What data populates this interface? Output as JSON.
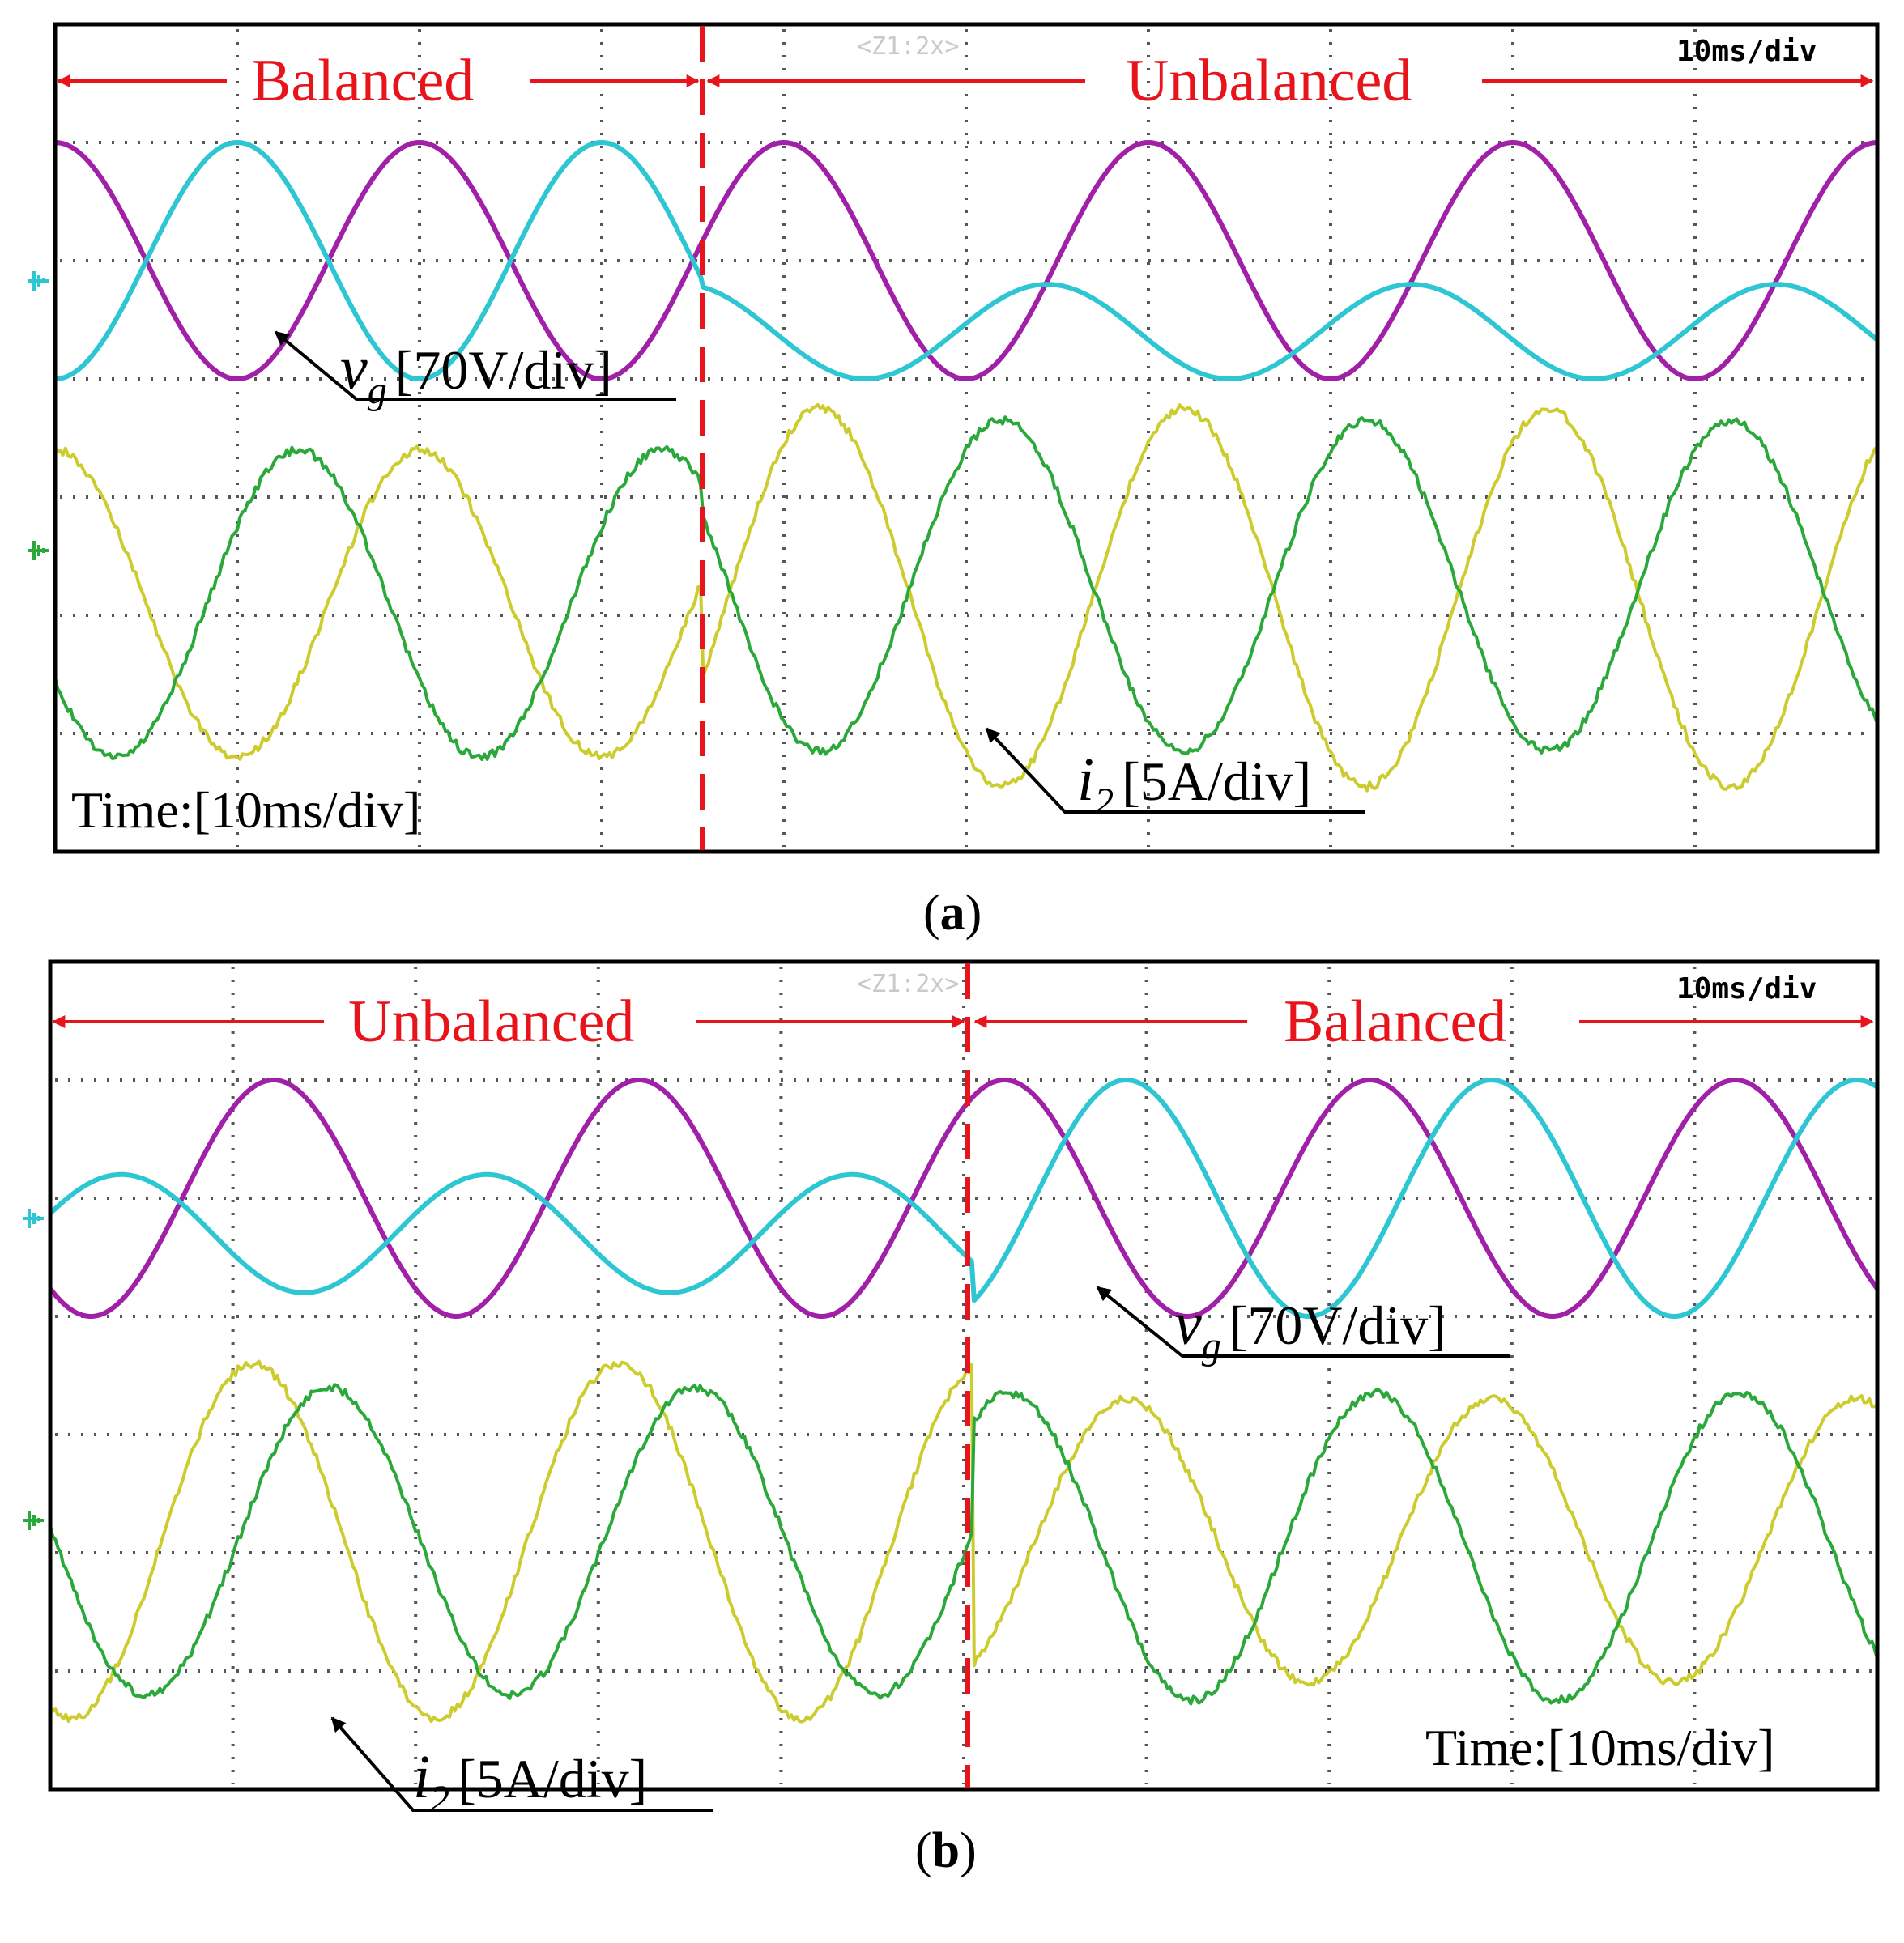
{
  "chart_data": [
    {
      "type": "line",
      "panel": "a",
      "caption": "a",
      "scope_timebase": "10ms/div",
      "zoom_label": "<Z1:2x>",
      "time_label": "Time:[10ms/div]",
      "regions": [
        {
          "label": "Balanced",
          "t_start": 0,
          "t_end": 3.55
        },
        {
          "label": "Unbalanced",
          "t_start": 3.55,
          "t_end": 10
        }
      ],
      "transition_div": 3.55,
      "annotations": [
        {
          "symbol": "v",
          "subscript": "g",
          "scale": "[70V/div]"
        },
        {
          "symbol": "i",
          "subscript": "2",
          "scale": "[5A/div]"
        }
      ],
      "axes": {
        "x_divisions": 10,
        "y_divisions": 7,
        "x_unit": "ms/div",
        "x_scale": 10
      },
      "series": [
        {
          "name": "vg phase 1",
          "color": "#a020a8",
          "freq_hz": 50,
          "segments": [
            {
              "offset_div": 2,
              "amp_div": 1,
              "phase_deg": 90
            },
            {
              "offset_div": 2,
              "amp_div": 1,
              "phase_deg": 90
            }
          ]
        },
        {
          "name": "vg phase 2",
          "color": "#2ec6d2",
          "freq_hz": 50,
          "segments": [
            {
              "offset_div": 2,
              "amp_div": 1,
              "phase_deg": -90
            },
            {
              "offset_div": 2.6,
              "amp_div": 0.4,
              "phase_deg": 190
            }
          ]
        },
        {
          "name": "i2 phase 1",
          "color": "#cccc2e",
          "freq_hz": 50,
          "segments": [
            {
              "offset_div": 4.9,
              "amp_div": 1.3,
              "phase_deg": 90
            },
            {
              "offset_div": 4.85,
              "amp_div": 1.6,
              "phase_deg": 55
            }
          ]
        },
        {
          "name": "i2 phase 2",
          "color": "#2aa83a",
          "freq_hz": 50,
          "segments": [
            {
              "offset_div": 4.9,
              "amp_div": 1.3,
              "phase_deg": 210
            },
            {
              "offset_div": 4.75,
              "amp_div": 1.4,
              "phase_deg": 235
            }
          ]
        }
      ]
    },
    {
      "type": "line",
      "panel": "b",
      "caption": "b",
      "scope_timebase": "10ms/div",
      "zoom_label": "<Z1:2x>",
      "time_label": "Time:[10ms/div]",
      "regions": [
        {
          "label": "Unbalanced",
          "t_start": 0,
          "t_end": 5.05
        },
        {
          "label": "Balanced",
          "t_start": 5.05,
          "t_end": 10
        }
      ],
      "transition_div": 5.05,
      "annotations": [
        {
          "symbol": "v",
          "subscript": "g",
          "scale": "[70V/div]"
        },
        {
          "symbol": "i",
          "subscript": "2",
          "scale": "[5A/div]"
        }
      ],
      "axes": {
        "x_divisions": 10,
        "y_divisions": 7,
        "x_unit": "ms/div",
        "x_scale": 10
      },
      "series": [
        {
          "name": "vg phase 1",
          "color": "#a020a8",
          "freq_hz": 50,
          "segments": [
            {
              "offset_div": 2,
              "amp_div": 1,
              "phase_deg": 230
            },
            {
              "offset_div": 2,
              "amp_div": 1,
              "phase_deg": 230
            }
          ]
        },
        {
          "name": "vg phase 2",
          "color": "#2ec6d2",
          "freq_hz": 50,
          "segments": [
            {
              "offset_div": 2.3,
              "amp_div": 0.5,
              "phase_deg": 20
            },
            {
              "offset_div": 2,
              "amp_div": 1,
              "phase_deg": 110
            }
          ]
        },
        {
          "name": "i2 phase 1",
          "color": "#cccc2e",
          "freq_hz": 50,
          "segments": [
            {
              "offset_div": 4.9,
              "amp_div": 1.5,
              "phase_deg": 250
            },
            {
              "offset_div": 4.9,
              "amp_div": 1.2,
              "phase_deg": 110
            }
          ]
        },
        {
          "name": "i2 phase 2",
          "color": "#2aa83a",
          "freq_hz": 50,
          "segments": [
            {
              "offset_div": 4.9,
              "amp_div": 1.3,
              "phase_deg": 175
            },
            {
              "offset_div": 4.95,
              "amp_div": 1.3,
              "phase_deg": 225
            }
          ]
        }
      ]
    }
  ]
}
